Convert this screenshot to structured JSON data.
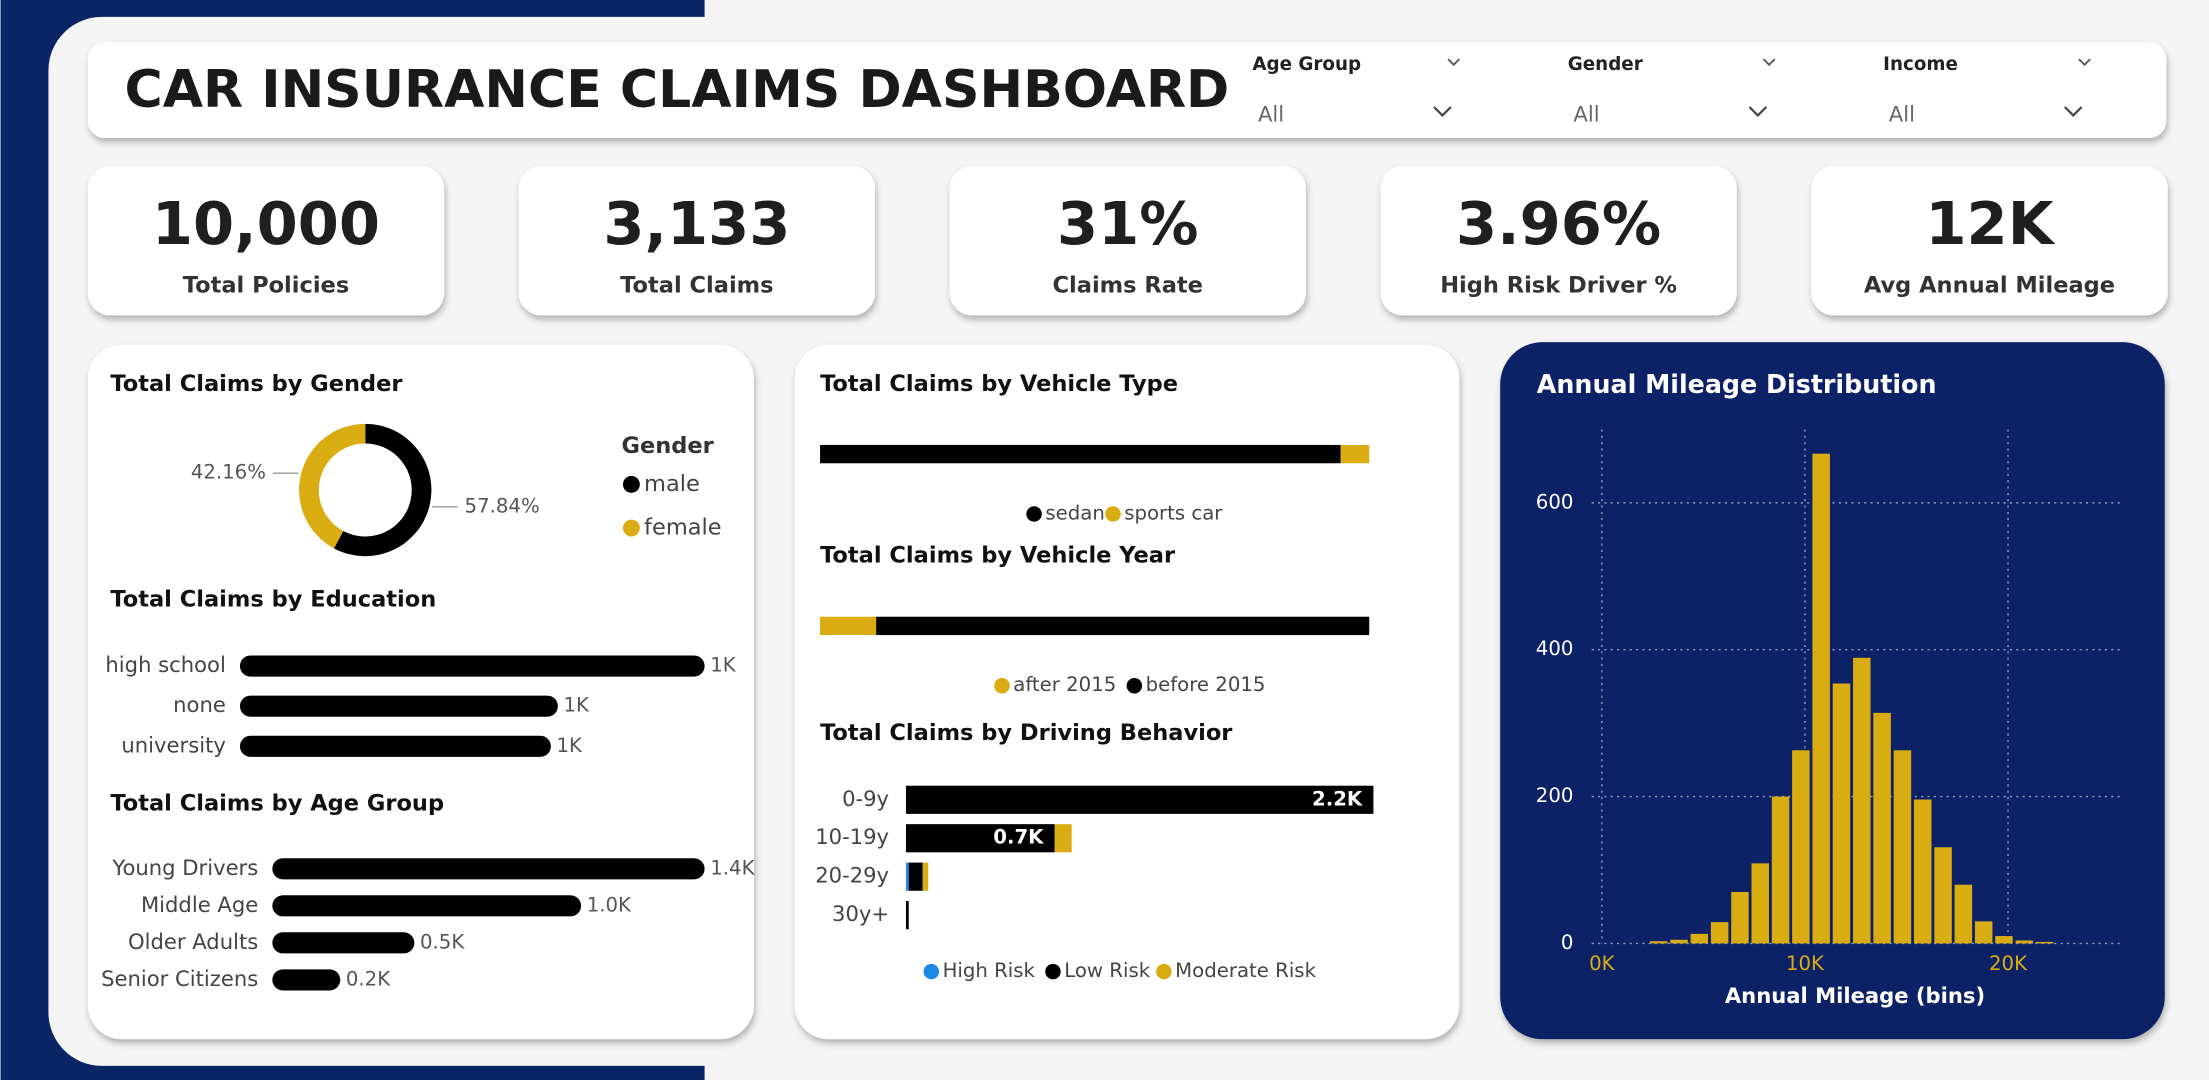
{
  "header": {
    "title": "CAR INSURANCE CLAIMS DASHBOARD"
  },
  "filters": [
    {
      "label": "Age Group",
      "value": "All"
    },
    {
      "label": "Gender",
      "value": "All"
    },
    {
      "label": "Income",
      "value": "All"
    }
  ],
  "kpis": [
    {
      "value": "10,000",
      "label": "Total Policies"
    },
    {
      "value": "3,133",
      "label": "Total Claims"
    },
    {
      "value": "31%",
      "label": "Claims Rate"
    },
    {
      "value": "3.96%",
      "label": "High Risk Driver %"
    },
    {
      "value": "12K",
      "label": "Avg Annual Mileage"
    }
  ],
  "chart_data": [
    {
      "type": "pie",
      "donut": true,
      "title": "Total Claims by Gender",
      "legend_title": "Gender",
      "categories": [
        "male",
        "female"
      ],
      "values": [
        57.84,
        42.16
      ],
      "value_labels": [
        "57.84%",
        "42.16%"
      ],
      "colors": [
        "#000000",
        "#d9ad12"
      ]
    },
    {
      "type": "bar",
      "orientation": "horizontal",
      "title": "Total Claims by Education",
      "categories": [
        "high school",
        "none",
        "university"
      ],
      "values": [
        1330,
        910,
        890
      ],
      "value_labels": [
        "1K",
        "1K",
        "1K"
      ],
      "color": "#000000"
    },
    {
      "type": "bar",
      "orientation": "horizontal",
      "title": "Total Claims by Age Group",
      "categories": [
        "Young Drivers",
        "Middle Age",
        "Older Adults",
        "Senior Citizens"
      ],
      "values": [
        1400,
        1000,
        460,
        220
      ],
      "value_labels": [
        "1.4K",
        "1.0K",
        "0.5K",
        "0.2K"
      ],
      "color": "#000000"
    },
    {
      "type": "stacked_bar",
      "title": "Total Claims by Vehicle Type",
      "series": [
        {
          "name": "sedan",
          "color": "#000000",
          "values": [
            2970
          ]
        },
        {
          "name": "sports car",
          "color": "#d9ad12",
          "values": [
            163
          ]
        }
      ]
    },
    {
      "type": "stacked_bar",
      "title": "Total Claims by Vehicle Year",
      "series": [
        {
          "name": "after 2015",
          "color": "#d9ad12",
          "values": [
            320
          ]
        },
        {
          "name": "before 2015",
          "color": "#000000",
          "values": [
            2813
          ]
        }
      ]
    },
    {
      "type": "stacked_hbar",
      "title": "Total Claims by Driving Behavior",
      "categories": [
        "0-9y",
        "10-19y",
        "20-29y",
        "30y+"
      ],
      "series": [
        {
          "name": "High Risk",
          "color": "#1e88e5",
          "values": [
            0,
            0,
            13,
            0
          ]
        },
        {
          "name": "Low Risk",
          "color": "#000000",
          "values": [
            2200,
            700,
            66,
            13
          ],
          "value_labels": [
            "2.2K",
            "0.7K",
            null,
            null
          ]
        },
        {
          "name": "Moderate Risk",
          "color": "#d9ad12",
          "values": [
            0,
            80,
            26,
            0
          ]
        }
      ]
    },
    {
      "type": "histogram",
      "title": "Annual Mileage Distribution",
      "x_label": "Annual Mileage (bins)",
      "color": "#d9ad12",
      "bins": [
        2300,
        3300,
        4300,
        5300,
        6300,
        7300,
        8300,
        9300,
        10300,
        11300,
        12300,
        13300,
        14300,
        15300,
        16300,
        17300,
        18300,
        19300,
        20300,
        21300,
        22300
      ],
      "values": [
        3,
        5,
        13,
        29,
        70,
        109,
        200,
        263,
        667,
        354,
        389,
        314,
        263,
        196,
        131,
        80,
        30,
        10,
        4,
        2
      ],
      "xlim": [
        -500,
        25500
      ],
      "xticks": [
        {
          "value": 0,
          "label": "0K"
        },
        {
          "value": 10000,
          "label": "10K"
        },
        {
          "value": 20000,
          "label": "20K"
        }
      ],
      "ylim": [
        0,
        700
      ],
      "yticks": [
        0,
        200,
        400,
        600
      ],
      "grid": true
    }
  ]
}
